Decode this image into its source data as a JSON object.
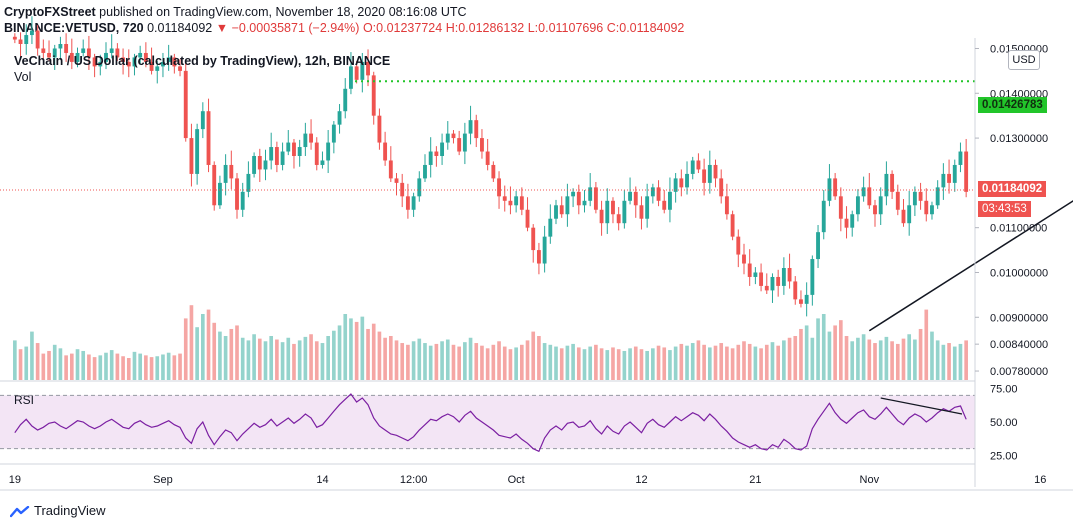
{
  "header": {
    "publisher": "CryptoFXStreet",
    "published_text": "published on TradingView.com, November 18, 2020 08:16:08 UTC",
    "symbol": "BINANCE:VETUSD, 720",
    "last": "0.01184092",
    "arrow": "▼",
    "change": "−0.00035871 (−2.94%)",
    "open": "O:0.01237724",
    "high": "H:0.01286132",
    "low": "L:0.01107696",
    "close": "C:0.01184092"
  },
  "plot_title": "VeChain / US Dollar (calculated by TradingView), 12h, BINANCE",
  "vol_label": "Vol",
  "rsi_label": "RSI",
  "currency_button": "USD",
  "price_tags": {
    "resistance": "0.01426783",
    "last_price": "0.01184092",
    "countdown": "03:43:53"
  },
  "brand": "TradingView",
  "colors": {
    "up": "#26a69a",
    "down": "#ef5350",
    "up_vol": "#94d3cc",
    "down_vol": "#f5a6a4",
    "resistance": "#22c52a",
    "rsi_line": "#7b1fa2",
    "rsi_band": "#f3e5f5"
  },
  "chart_data": [
    {
      "type": "candlestick",
      "title": "VeChain / US Dollar (calculated by TradingView), 12h, BINANCE",
      "ylim": [
        0.0076,
        0.0151
      ],
      "y_ticks": [
        "0.00780000",
        "0.00840000",
        "0.00900000",
        "0.01000000",
        "0.01100000",
        "0.01300000",
        "0.01400000",
        "0.01500000"
      ],
      "x_ticks": [
        "19",
        "Sep",
        "14",
        "12:00",
        "Oct",
        "12",
        "21",
        "Nov",
        "16"
      ],
      "x_tick_index": [
        0,
        26,
        54,
        70,
        88,
        110,
        130,
        150,
        180
      ],
      "resistance_level": 0.01426783,
      "last_price": 0.01184092,
      "trendline": {
        "from": [
          150,
          0.0087
        ],
        "to": [
          192,
          0.0121
        ]
      },
      "close": [
        0.0152,
        0.0151,
        0.0153,
        0.0154,
        0.015,
        0.0149,
        0.0148,
        0.015,
        0.0151,
        0.0149,
        0.0147,
        0.0149,
        0.015,
        0.0148,
        0.0146,
        0.0147,
        0.0149,
        0.015,
        0.0148,
        0.0147,
        0.0146,
        0.0148,
        0.0149,
        0.0147,
        0.0145,
        0.0146,
        0.0147,
        0.0148,
        0.0146,
        0.0145,
        0.013,
        0.0122,
        0.0132,
        0.0136,
        0.0124,
        0.0115,
        0.012,
        0.0124,
        0.0121,
        0.0114,
        0.0118,
        0.0122,
        0.0126,
        0.0123,
        0.0125,
        0.0128,
        0.0124,
        0.0127,
        0.0129,
        0.0126,
        0.0128,
        0.0131,
        0.0129,
        0.0124,
        0.0125,
        0.0129,
        0.0133,
        0.0136,
        0.0141,
        0.0146,
        0.0143,
        0.0147,
        0.0144,
        0.0135,
        0.0129,
        0.0125,
        0.0121,
        0.012,
        0.0117,
        0.0114,
        0.0117,
        0.0121,
        0.0124,
        0.0127,
        0.0126,
        0.0129,
        0.0131,
        0.013,
        0.0127,
        0.0131,
        0.0134,
        0.013,
        0.0127,
        0.0124,
        0.0121,
        0.0117,
        0.0116,
        0.0115,
        0.0117,
        0.0114,
        0.011,
        0.0105,
        0.0102,
        0.0108,
        0.0112,
        0.0115,
        0.0113,
        0.0117,
        0.0118,
        0.0115,
        0.0116,
        0.0119,
        0.0114,
        0.0111,
        0.0116,
        0.0113,
        0.0111,
        0.0116,
        0.0118,
        0.0115,
        0.0112,
        0.0117,
        0.0119,
        0.0116,
        0.0114,
        0.0118,
        0.0121,
        0.0119,
        0.0122,
        0.0125,
        0.0123,
        0.012,
        0.0124,
        0.0121,
        0.0117,
        0.0113,
        0.0108,
        0.0104,
        0.0102,
        0.0099,
        0.01,
        0.0097,
        0.0096,
        0.0099,
        0.0097,
        0.0101,
        0.0098,
        0.0094,
        0.0093,
        0.0095,
        0.0103,
        0.0109,
        0.0116,
        0.0121,
        0.0117,
        0.0112,
        0.011,
        0.0113,
        0.0117,
        0.0119,
        0.0115,
        0.0113,
        0.0117,
        0.0122,
        0.0118,
        0.0114,
        0.0111,
        0.0115,
        0.0118,
        0.0116,
        0.0113,
        0.0115,
        0.0119,
        0.0122,
        0.012,
        0.0124,
        0.0127,
        0.0118
      ]
    },
    {
      "type": "bar",
      "title": "Vol",
      "relative_values": [
        0.45,
        0.35,
        0.38,
        0.55,
        0.42,
        0.3,
        0.33,
        0.4,
        0.36,
        0.28,
        0.3,
        0.35,
        0.33,
        0.29,
        0.26,
        0.28,
        0.31,
        0.34,
        0.3,
        0.27,
        0.25,
        0.32,
        0.3,
        0.28,
        0.26,
        0.27,
        0.29,
        0.31,
        0.28,
        0.3,
        0.7,
        0.85,
        0.6,
        0.75,
        0.8,
        0.65,
        0.55,
        0.5,
        0.58,
        0.62,
        0.48,
        0.45,
        0.52,
        0.47,
        0.44,
        0.5,
        0.46,
        0.43,
        0.48,
        0.41,
        0.45,
        0.49,
        0.52,
        0.44,
        0.42,
        0.5,
        0.56,
        0.62,
        0.75,
        0.7,
        0.66,
        0.72,
        0.58,
        0.64,
        0.55,
        0.48,
        0.5,
        0.45,
        0.42,
        0.4,
        0.44,
        0.47,
        0.42,
        0.39,
        0.41,
        0.44,
        0.46,
        0.4,
        0.38,
        0.43,
        0.48,
        0.42,
        0.39,
        0.36,
        0.4,
        0.44,
        0.38,
        0.35,
        0.37,
        0.4,
        0.45,
        0.55,
        0.5,
        0.42,
        0.4,
        0.38,
        0.36,
        0.39,
        0.41,
        0.37,
        0.35,
        0.38,
        0.4,
        0.36,
        0.34,
        0.37,
        0.35,
        0.33,
        0.36,
        0.38,
        0.35,
        0.33,
        0.36,
        0.39,
        0.37,
        0.34,
        0.38,
        0.41,
        0.39,
        0.42,
        0.45,
        0.4,
        0.37,
        0.39,
        0.42,
        0.38,
        0.36,
        0.4,
        0.44,
        0.41,
        0.38,
        0.36,
        0.4,
        0.43,
        0.39,
        0.45,
        0.48,
        0.5,
        0.58,
        0.62,
        0.48,
        0.7,
        0.75,
        0.55,
        0.62,
        0.68,
        0.5,
        0.44,
        0.48,
        0.52,
        0.46,
        0.42,
        0.45,
        0.49,
        0.44,
        0.41,
        0.47,
        0.52,
        0.46,
        0.58,
        0.8,
        0.55,
        0.45,
        0.4,
        0.42,
        0.38,
        0.41,
        0.45,
        0.4,
        0.43,
        0.47,
        0.5,
        0.55,
        0.48
      ]
    },
    {
      "type": "line",
      "title": "RSI",
      "ylim": [
        20,
        80
      ],
      "y_ticks": [
        "75.00",
        "50.00",
        "25.00"
      ],
      "band": [
        30,
        70
      ],
      "values": [
        42,
        48,
        52,
        47,
        44,
        46,
        49,
        50,
        47,
        45,
        48,
        51,
        50,
        47,
        45,
        47,
        50,
        52,
        49,
        46,
        45,
        49,
        51,
        48,
        46,
        47,
        49,
        51,
        48,
        46,
        38,
        34,
        45,
        50,
        40,
        33,
        39,
        44,
        42,
        36,
        41,
        45,
        49,
        46,
        48,
        52,
        47,
        50,
        53,
        49,
        52,
        56,
        53,
        46,
        48,
        53,
        58,
        63,
        67,
        71,
        65,
        68,
        63,
        53,
        47,
        44,
        41,
        40,
        38,
        36,
        39,
        44,
        48,
        52,
        51,
        54,
        56,
        54,
        50,
        55,
        58,
        53,
        50,
        47,
        44,
        40,
        39,
        38,
        41,
        37,
        34,
        30,
        28,
        38,
        44,
        47,
        44,
        49,
        50,
        46,
        47,
        51,
        45,
        41,
        47,
        43,
        41,
        47,
        50,
        46,
        42,
        49,
        52,
        48,
        46,
        50,
        54,
        51,
        54,
        57,
        55,
        51,
        56,
        52,
        47,
        43,
        38,
        35,
        33,
        31,
        33,
        30,
        29,
        33,
        31,
        37,
        34,
        30,
        29,
        32,
        45,
        52,
        58,
        64,
        57,
        52,
        49,
        53,
        57,
        59,
        54,
        52,
        56,
        61,
        56,
        51,
        48,
        53,
        56,
        54,
        50,
        53,
        57,
        60,
        58,
        61,
        62,
        52
      ]
    }
  ]
}
